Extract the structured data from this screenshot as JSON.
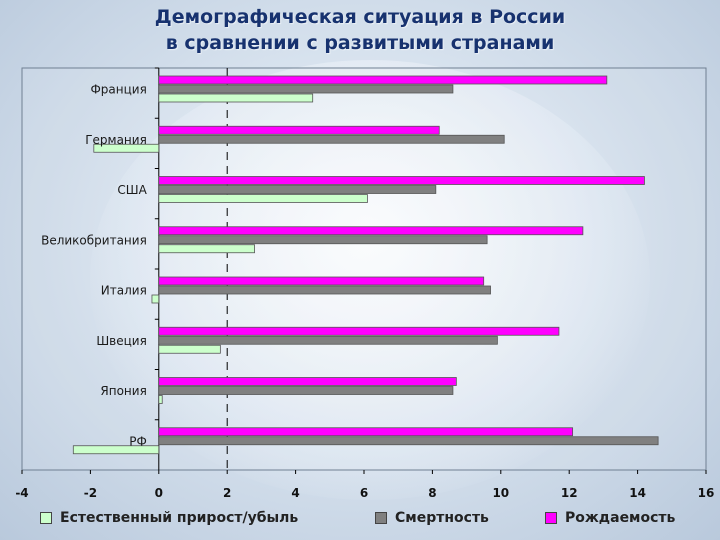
{
  "title_line1": "Демографическая ситуация в России",
  "title_line2": "в сравнении с развитыми странами",
  "chart_data": {
    "type": "bar",
    "orientation": "horizontal",
    "categories": [
      "Франция",
      "Германия",
      "США",
      "Великобритания",
      "Италия",
      "Швеция",
      "Япония",
      "РФ"
    ],
    "series": [
      {
        "name": "Рождаемость",
        "color": "#ff00ff",
        "values": [
          13.1,
          8.2,
          14.2,
          12.4,
          9.5,
          11.7,
          8.7,
          12.1
        ]
      },
      {
        "name": "Смертность",
        "color": "#808080",
        "values": [
          8.6,
          10.1,
          8.1,
          9.6,
          9.7,
          9.9,
          8.6,
          14.6
        ]
      },
      {
        "name": "Естественный прирост/убыль",
        "color": "#ccffcc",
        "values": [
          4.5,
          -1.9,
          6.1,
          2.8,
          -0.2,
          1.8,
          0.1,
          -2.5
        ]
      }
    ],
    "xlim": [
      -4,
      16
    ],
    "xticks": [
      "-4",
      "-2",
      "0",
      "2",
      "4",
      "6",
      "8",
      "10",
      "12",
      "14",
      "16"
    ],
    "grid": true,
    "legend_position": "bottom"
  },
  "legend": {
    "items": [
      {
        "label": "Естественный прирост/убыль",
        "color": "#ccffcc"
      },
      {
        "label": "Смертность",
        "color": "#808080"
      },
      {
        "label": "Рождаемость",
        "color": "#ff00ff"
      }
    ]
  }
}
